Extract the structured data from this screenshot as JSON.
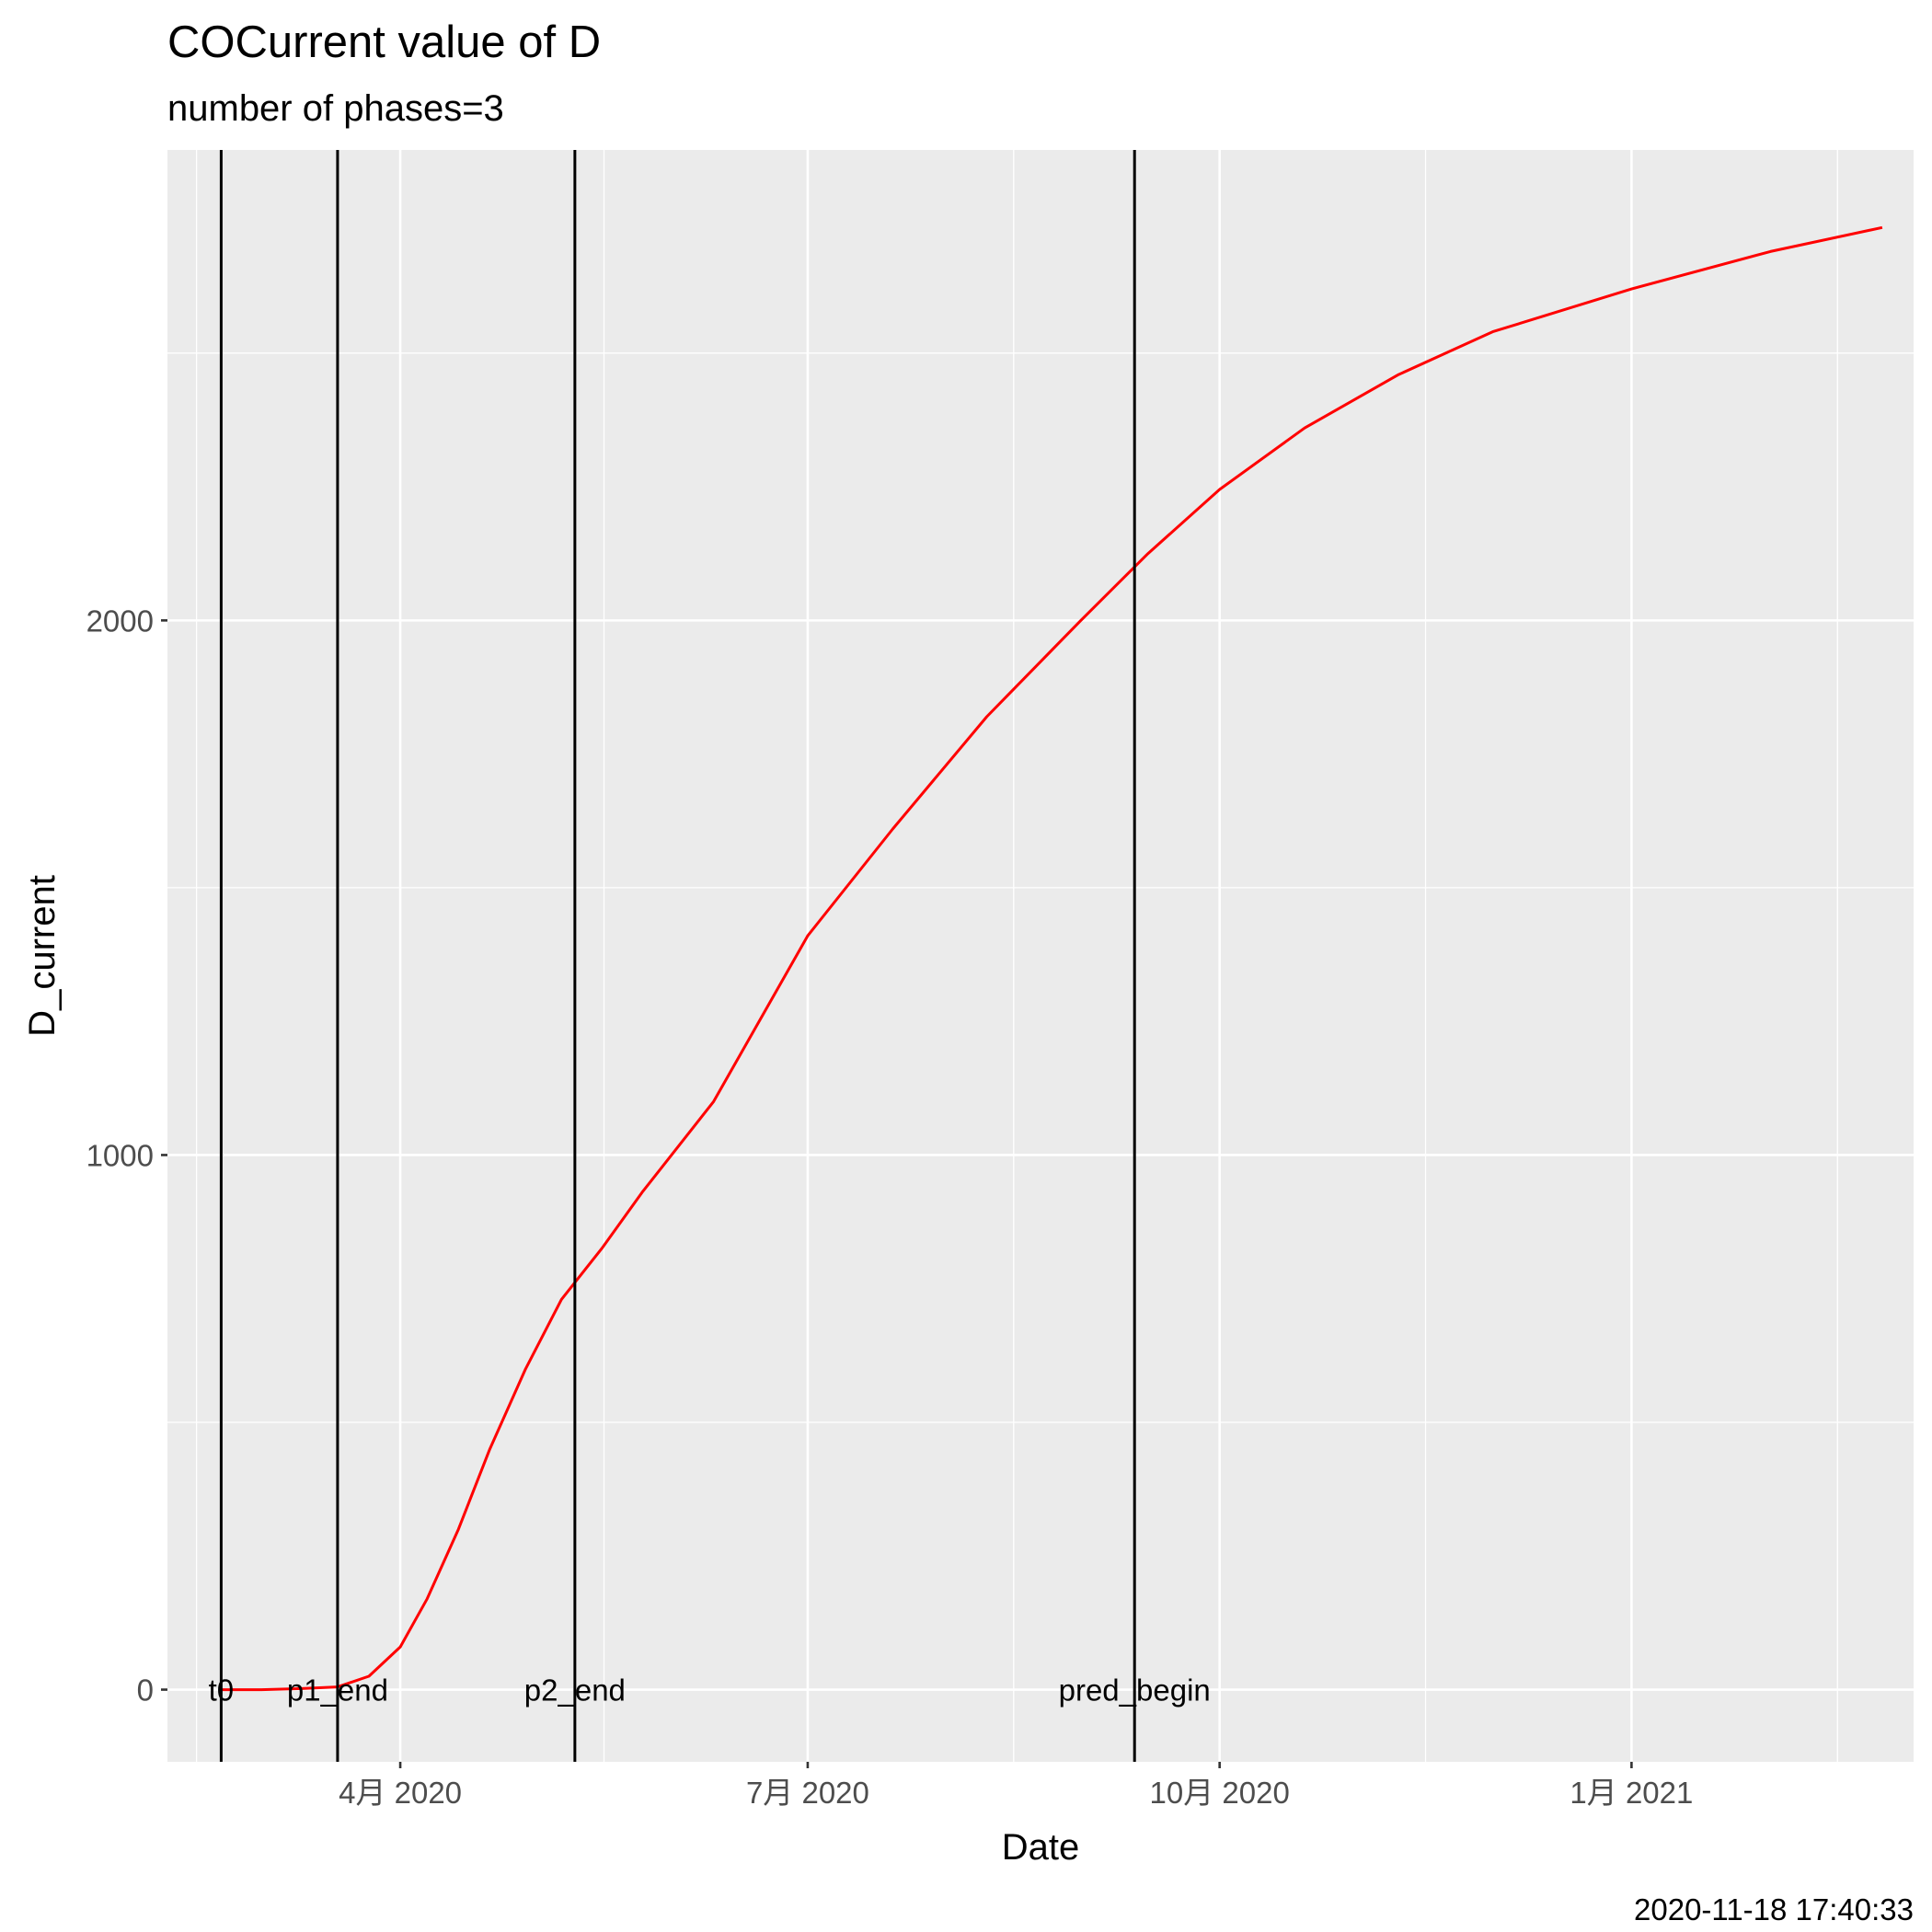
{
  "chart_data": {
    "type": "line",
    "title": "COCurrent value of D",
    "subtitle": "number of phases=3",
    "xlabel": "Date",
    "ylabel": "D_current",
    "caption": "2020-11-18 17:40:33",
    "x_ticks": [
      {
        "date": "2020-04-01",
        "label": "4月 2020"
      },
      {
        "date": "2020-07-01",
        "label": "7月 2020"
      },
      {
        "date": "2020-10-01",
        "label": "10月 2020"
      },
      {
        "date": "2021-01-01",
        "label": "1月 2021"
      }
    ],
    "y_ticks": [
      0,
      1000,
      2000
    ],
    "xlim": [
      "2020-02-09",
      "2021-03-05"
    ],
    "ylim": [
      -135,
      2880
    ],
    "grid": true,
    "series": [
      {
        "color": "#ff0000",
        "points": [
          {
            "x": "2020-02-21",
            "y": 0
          },
          {
            "x": "2020-03-01",
            "y": 0
          },
          {
            "x": "2020-03-10",
            "y": 2
          },
          {
            "x": "2020-03-18",
            "y": 5
          },
          {
            "x": "2020-03-25",
            "y": 25
          },
          {
            "x": "2020-04-01",
            "y": 80
          },
          {
            "x": "2020-04-07",
            "y": 170
          },
          {
            "x": "2020-04-14",
            "y": 300
          },
          {
            "x": "2020-04-21",
            "y": 450
          },
          {
            "x": "2020-04-29",
            "y": 600
          },
          {
            "x": "2020-05-07",
            "y": 730
          },
          {
            "x": "2020-05-16",
            "y": 825
          },
          {
            "x": "2020-05-25",
            "y": 930
          },
          {
            "x": "2020-06-10",
            "y": 1100
          },
          {
            "x": "2020-07-01",
            "y": 1410
          },
          {
            "x": "2020-07-20",
            "y": 1610
          },
          {
            "x": "2020-08-10",
            "y": 1820
          },
          {
            "x": "2020-08-31",
            "y": 2000
          },
          {
            "x": "2020-09-15",
            "y": 2125
          },
          {
            "x": "2020-10-01",
            "y": 2245
          },
          {
            "x": "2020-10-20",
            "y": 2360
          },
          {
            "x": "2020-11-10",
            "y": 2460
          },
          {
            "x": "2020-12-01",
            "y": 2540
          },
          {
            "x": "2021-01-01",
            "y": 2620
          },
          {
            "x": "2021-02-01",
            "y": 2690
          },
          {
            "x": "2021-02-26",
            "y": 2735
          }
        ]
      }
    ],
    "vlines": [
      {
        "date": "2020-02-21",
        "label": "t0"
      },
      {
        "date": "2020-03-18",
        "label": "p1_end"
      },
      {
        "date": "2020-05-10",
        "label": "p2_end"
      },
      {
        "date": "2020-09-12",
        "label": "pred_begin"
      }
    ],
    "colors": {
      "panel_background": "#ebebeb",
      "grid": "#ffffff",
      "line": "#ff0000",
      "vline": "#000000"
    }
  }
}
